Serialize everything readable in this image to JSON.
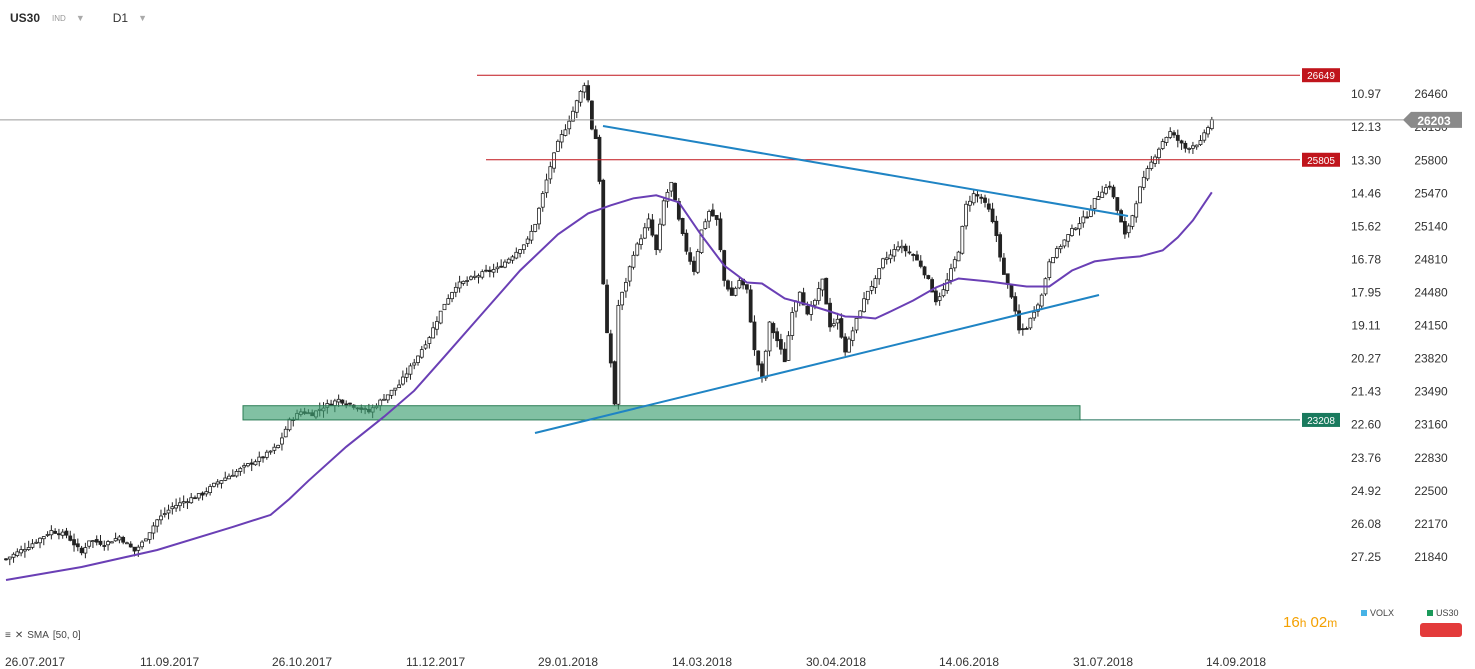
{
  "header": {
    "symbol": "US30",
    "symbol_type": "IND",
    "timeframe": "D1"
  },
  "price_labels": {
    "current": "26203",
    "level_high": "26649",
    "level_resist": "25805",
    "level_support": "23208"
  },
  "right_axis": {
    "volx": [
      "10.97",
      "12.13",
      "13.30",
      "14.46",
      "15.62",
      "16.78",
      "17.95",
      "19.11",
      "20.27",
      "21.43",
      "22.60",
      "23.76",
      "24.92",
      "26.08",
      "27.25"
    ],
    "price": [
      "26460",
      "26130",
      "25800",
      "25470",
      "25140",
      "24810",
      "24480",
      "24150",
      "23820",
      "23490",
      "23160",
      "22830",
      "22500",
      "22170",
      "21840"
    ]
  },
  "x_axis": {
    "dates": [
      "26.07.2017",
      "11.09.2017",
      "26.10.2017",
      "11.12.2017",
      "29.01.2018",
      "14.03.2018",
      "30.04.2018",
      "14.06.2018",
      "31.07.2018",
      "14.09.2018"
    ]
  },
  "indicator": {
    "label": "SMA",
    "params": "[50, 0]"
  },
  "timer": {
    "hours": "16",
    "h_unit": "h",
    "minutes": "02",
    "m_unit": "m"
  },
  "legend": {
    "item1": "VOLX",
    "item2": "US30"
  },
  "colors": {
    "up_candle": "#ffffff",
    "down_candle": "#222222",
    "sma": "#6a3fb5",
    "trend": "#1f84c4",
    "resistance": "#c0151c",
    "support_zone": "#3e9f72",
    "price_tag": "#8a8a8a"
  },
  "chart_data": {
    "type": "candlestick",
    "x_start": "26.07.2017",
    "x_end": "14.09.2018",
    "ylim": [
      21700,
      26650
    ],
    "close_path": [
      [
        0,
        21820
      ],
      [
        6,
        21950
      ],
      [
        12,
        22100
      ],
      [
        16,
        22060
      ],
      [
        20,
        21880
      ],
      [
        22,
        22010
      ],
      [
        26,
        21970
      ],
      [
        30,
        22040
      ],
      [
        34,
        21900
      ],
      [
        36,
        21980
      ],
      [
        40,
        22210
      ],
      [
        44,
        22340
      ],
      [
        48,
        22410
      ],
      [
        52,
        22470
      ],
      [
        56,
        22590
      ],
      [
        60,
        22670
      ],
      [
        64,
        22760
      ],
      [
        68,
        22840
      ],
      [
        72,
        22950
      ],
      [
        75,
        23200
      ],
      [
        78,
        23290
      ],
      [
        81,
        23270
      ],
      [
        84,
        23340
      ],
      [
        88,
        23410
      ],
      [
        92,
        23350
      ],
      [
        96,
        23290
      ],
      [
        100,
        23430
      ],
      [
        104,
        23560
      ],
      [
        108,
        23790
      ],
      [
        112,
        24040
      ],
      [
        116,
        24370
      ],
      [
        119,
        24550
      ],
      [
        122,
        24600
      ],
      [
        126,
        24670
      ],
      [
        130,
        24720
      ],
      [
        134,
        24850
      ],
      [
        138,
        25000
      ],
      [
        140,
        25170
      ],
      [
        142,
        25460
      ],
      [
        144,
        25740
      ],
      [
        146,
        25970
      ],
      [
        148,
        26120
      ],
      [
        150,
        26290
      ],
      [
        152,
        26480
      ],
      [
        153,
        26560
      ],
      [
        154,
        26400
      ],
      [
        155,
        26120
      ],
      [
        156,
        26020
      ],
      [
        157,
        25600
      ],
      [
        158,
        24560
      ],
      [
        159,
        24060
      ],
      [
        160,
        23780
      ],
      [
        161,
        23370
      ],
      [
        162,
        24350
      ],
      [
        164,
        24590
      ],
      [
        166,
        24870
      ],
      [
        168,
        25030
      ],
      [
        170,
        25200
      ],
      [
        172,
        24900
      ],
      [
        174,
        25390
      ],
      [
        176,
        25570
      ],
      [
        178,
        25200
      ],
      [
        180,
        24900
      ],
      [
        182,
        24700
      ],
      [
        184,
        25100
      ],
      [
        186,
        25290
      ],
      [
        188,
        25200
      ],
      [
        190,
        24600
      ],
      [
        192,
        24450
      ],
      [
        194,
        24600
      ],
      [
        196,
        24500
      ],
      [
        198,
        23900
      ],
      [
        200,
        23620
      ],
      [
        202,
        24170
      ],
      [
        204,
        24000
      ],
      [
        206,
        23800
      ],
      [
        208,
        24300
      ],
      [
        210,
        24500
      ],
      [
        212,
        24250
      ],
      [
        214,
        24400
      ],
      [
        216,
        24600
      ],
      [
        218,
        24150
      ],
      [
        220,
        24200
      ],
      [
        222,
        23900
      ],
      [
        224,
        24100
      ],
      [
        226,
        24310
      ],
      [
        228,
        24500
      ],
      [
        230,
        24600
      ],
      [
        232,
        24800
      ],
      [
        234,
        24850
      ],
      [
        236,
        24950
      ],
      [
        238,
        24900
      ],
      [
        240,
        24850
      ],
      [
        242,
        24750
      ],
      [
        244,
        24600
      ],
      [
        246,
        24400
      ],
      [
        248,
        24500
      ],
      [
        250,
        24700
      ],
      [
        252,
        24900
      ],
      [
        254,
        25350
      ],
      [
        256,
        25460
      ],
      [
        258,
        25420
      ],
      [
        260,
        25300
      ],
      [
        262,
        25050
      ],
      [
        264,
        24650
      ],
      [
        266,
        24450
      ],
      [
        268,
        24100
      ],
      [
        270,
        24130
      ],
      [
        272,
        24300
      ],
      [
        274,
        24450
      ],
      [
        276,
        24800
      ],
      [
        278,
        24900
      ],
      [
        280,
        25000
      ],
      [
        282,
        25100
      ],
      [
        284,
        25180
      ],
      [
        286,
        25250
      ],
      [
        288,
        25400
      ],
      [
        290,
        25500
      ],
      [
        292,
        25550
      ],
      [
        294,
        25300
      ],
      [
        296,
        25050
      ],
      [
        298,
        25250
      ],
      [
        300,
        25520
      ],
      [
        302,
        25700
      ],
      [
        304,
        25850
      ],
      [
        306,
        25990
      ],
      [
        308,
        26080
      ],
      [
        310,
        26000
      ],
      [
        312,
        25920
      ],
      [
        314,
        25950
      ],
      [
        316,
        25980
      ],
      [
        318,
        26130
      ],
      [
        319,
        26203
      ]
    ],
    "sma50_path": [
      [
        0,
        21610
      ],
      [
        20,
        21740
      ],
      [
        40,
        21910
      ],
      [
        60,
        22140
      ],
      [
        70,
        22260
      ],
      [
        75,
        22420
      ],
      [
        80,
        22600
      ],
      [
        90,
        22940
      ],
      [
        100,
        23240
      ],
      [
        108,
        23500
      ],
      [
        116,
        23840
      ],
      [
        126,
        24270
      ],
      [
        136,
        24700
      ],
      [
        146,
        25060
      ],
      [
        154,
        25270
      ],
      [
        160,
        25350
      ],
      [
        166,
        25420
      ],
      [
        172,
        25450
      ],
      [
        178,
        25380
      ],
      [
        184,
        25050
      ],
      [
        190,
        24750
      ],
      [
        196,
        24580
      ],
      [
        200,
        24570
      ],
      [
        206,
        24420
      ],
      [
        212,
        24360
      ],
      [
        218,
        24290
      ],
      [
        222,
        24240
      ],
      [
        226,
        24235
      ],
      [
        230,
        24220
      ],
      [
        234,
        24290
      ],
      [
        240,
        24400
      ],
      [
        246,
        24530
      ],
      [
        252,
        24620
      ],
      [
        260,
        24590
      ],
      [
        266,
        24560
      ],
      [
        270,
        24540
      ],
      [
        276,
        24540
      ],
      [
        282,
        24700
      ],
      [
        288,
        24790
      ],
      [
        294,
        24820
      ],
      [
        300,
        24840
      ],
      [
        306,
        24900
      ],
      [
        310,
        25030
      ],
      [
        314,
        25200
      ],
      [
        319,
        25480
      ]
    ],
    "resistance_levels": [
      26649,
      25805
    ],
    "support_level": 23208,
    "support_zone": [
      23208,
      23350
    ],
    "sma_period": 50
  }
}
